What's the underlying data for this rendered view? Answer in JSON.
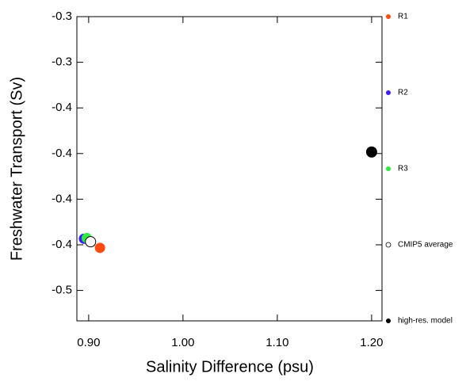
{
  "chart_data": {
    "type": "scatter",
    "x_label": "Salinity Difference (psu)",
    "y_label": "Freshwater Transport (Sv)",
    "xlim": [
      0.8875,
      1.211
    ],
    "ylim": [
      -0.5,
      -0.3
    ],
    "xticks": [
      {
        "value": 0.9,
        "label": "0.90"
      },
      {
        "value": 1.0,
        "label": "1.00"
      },
      {
        "value": 1.1,
        "label": "1.10"
      },
      {
        "value": 1.2,
        "label": "1.20"
      }
    ],
    "yticks": [
      {
        "value": -0.3,
        "label": "-0.3"
      },
      {
        "value": -0.33,
        "label": "-0.3"
      },
      {
        "value": -0.36,
        "label": "-0.4"
      },
      {
        "value": -0.39,
        "label": "-0.4"
      },
      {
        "value": -0.42,
        "label": "-0.4"
      },
      {
        "value": -0.45,
        "label": "-0.4"
      },
      {
        "value": -0.48,
        "label": "-0.5"
      }
    ],
    "series": [
      {
        "name": "R1",
        "color": "#ff4a10",
        "x": [
          0.912
        ],
        "values": [
          -0.452
        ]
      },
      {
        "name": "R2",
        "color": "#3c1eff",
        "x": [
          0.895
        ],
        "values": [
          -0.446
        ]
      },
      {
        "name": "R3",
        "color": "#2eea40",
        "x": [
          0.898
        ],
        "values": [
          -0.4456
        ]
      },
      {
        "name": "CMIP5 average",
        "color": "#ffffff",
        "x": [
          0.902
        ],
        "values": [
          -0.448
        ]
      },
      {
        "name": "high-res. model",
        "color": "#000000",
        "x": [
          1.2
        ],
        "values": [
          -0.389
        ]
      }
    ]
  }
}
